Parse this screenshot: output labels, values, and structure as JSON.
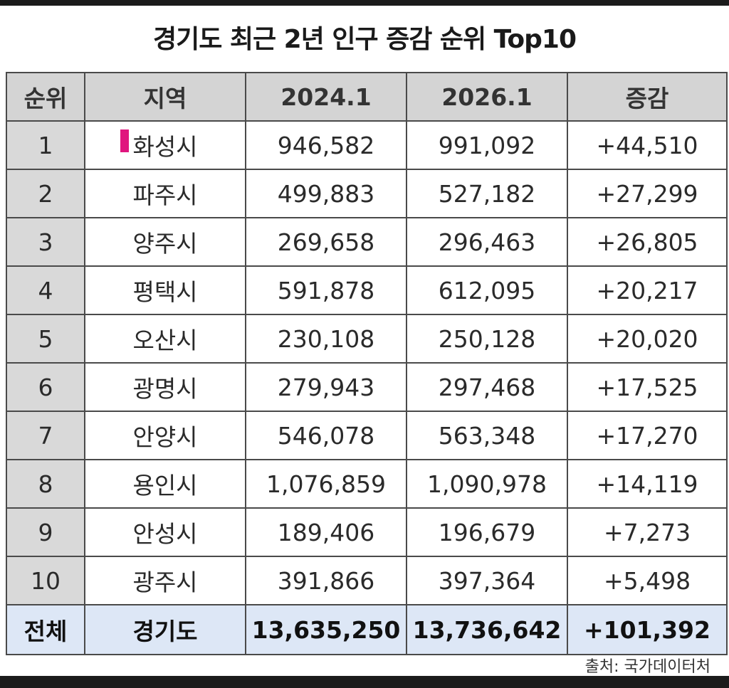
{
  "title": "경기도 최근 2년 인구 증감 순위 Top10",
  "headers": {
    "rank": "순위",
    "region": "지역",
    "year1": "2024.1",
    "year2": "2026.1",
    "change": "증감"
  },
  "rows": [
    {
      "rank": "1",
      "region": "화성시",
      "year1": "946,582",
      "year2": "991,092",
      "change": "+44,510",
      "highlight": true
    },
    {
      "rank": "2",
      "region": "파주시",
      "year1": "499,883",
      "year2": "527,182",
      "change": "+27,299"
    },
    {
      "rank": "3",
      "region": "양주시",
      "year1": "269,658",
      "year2": "296,463",
      "change": "+26,805"
    },
    {
      "rank": "4",
      "region": "평택시",
      "year1": "591,878",
      "year2": "612,095",
      "change": "+20,217"
    },
    {
      "rank": "5",
      "region": "오산시",
      "year1": "230,108",
      "year2": "250,128",
      "change": "+20,020"
    },
    {
      "rank": "6",
      "region": "광명시",
      "year1": "279,943",
      "year2": "297,468",
      "change": "+17,525"
    },
    {
      "rank": "7",
      "region": "안양시",
      "year1": "546,078",
      "year2": "563,348",
      "change": "+17,270"
    },
    {
      "rank": "8",
      "region": "용인시",
      "year1": "1,076,859",
      "year2": "1,090,978",
      "change": "+14,119"
    },
    {
      "rank": "9",
      "region": "안성시",
      "year1": "189,406",
      "year2": "196,679",
      "change": "+7,273"
    },
    {
      "rank": "10",
      "region": "광주시",
      "year1": "391,866",
      "year2": "397,364",
      "change": "+5,498"
    }
  ],
  "total": {
    "rank": "전체",
    "region": "경기도",
    "year1": "13,635,250",
    "year2": "13,736,642",
    "change": "+101,392"
  },
  "source": "출처: 국가데이터처",
  "colors": {
    "header_bg": "#d4d4d4",
    "rank_bg": "#d9d9d9",
    "total_bg": "#dde7f6",
    "highlight_marker": "#e0157e"
  }
}
